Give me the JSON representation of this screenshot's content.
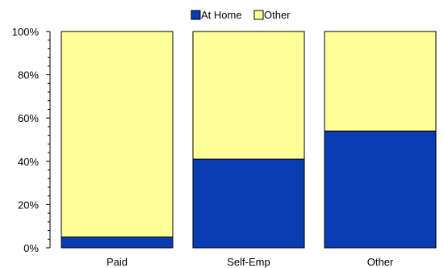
{
  "chart_data": {
    "type": "bar",
    "stacked": true,
    "percent": true,
    "title": "",
    "xlabel": "",
    "ylabel": "",
    "categories": [
      "Paid",
      "Self-Emp",
      "Other"
    ],
    "series": [
      {
        "name": "At Home",
        "color": "#0a3cb4",
        "values": [
          5,
          41,
          54
        ]
      },
      {
        "name": "Other",
        "color": "#ffff99",
        "values": [
          95,
          59,
          46
        ]
      }
    ],
    "ylim": [
      0,
      100
    ],
    "yticks": [
      0,
      20,
      40,
      60,
      80,
      100
    ],
    "ytick_labels": [
      "0%",
      "20%",
      "40%",
      "60%",
      "80%",
      "100%"
    ],
    "legend": {
      "position": "top-center",
      "entries": [
        "At Home",
        "Other"
      ]
    },
    "grid": false
  }
}
